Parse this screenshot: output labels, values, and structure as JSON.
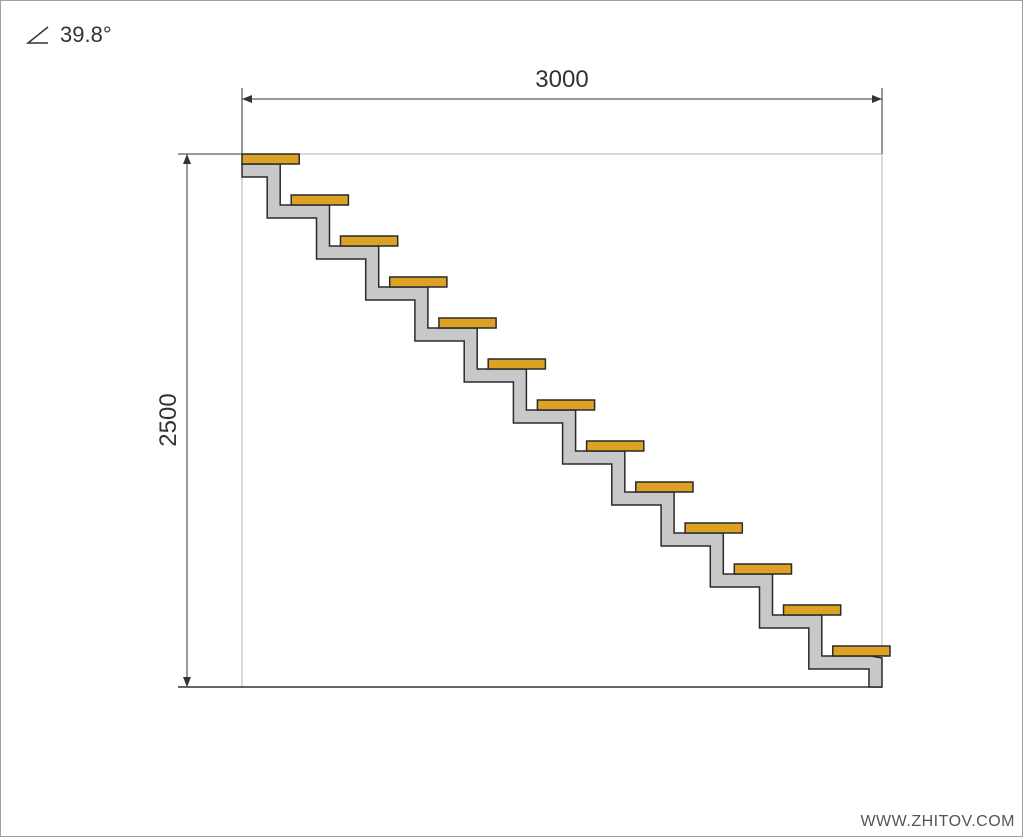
{
  "angle": {
    "value": "39.8°"
  },
  "dimensions": {
    "width_label": "3000",
    "height_label": "2500"
  },
  "steps": {
    "count": 13
  },
  "colors": {
    "tread": "#dca226",
    "stringer": "#c8c8c8",
    "outline": "#2a2a2a",
    "guide": "#b4b4b4"
  },
  "watermark": "WWW.ZHITOV.COM"
}
